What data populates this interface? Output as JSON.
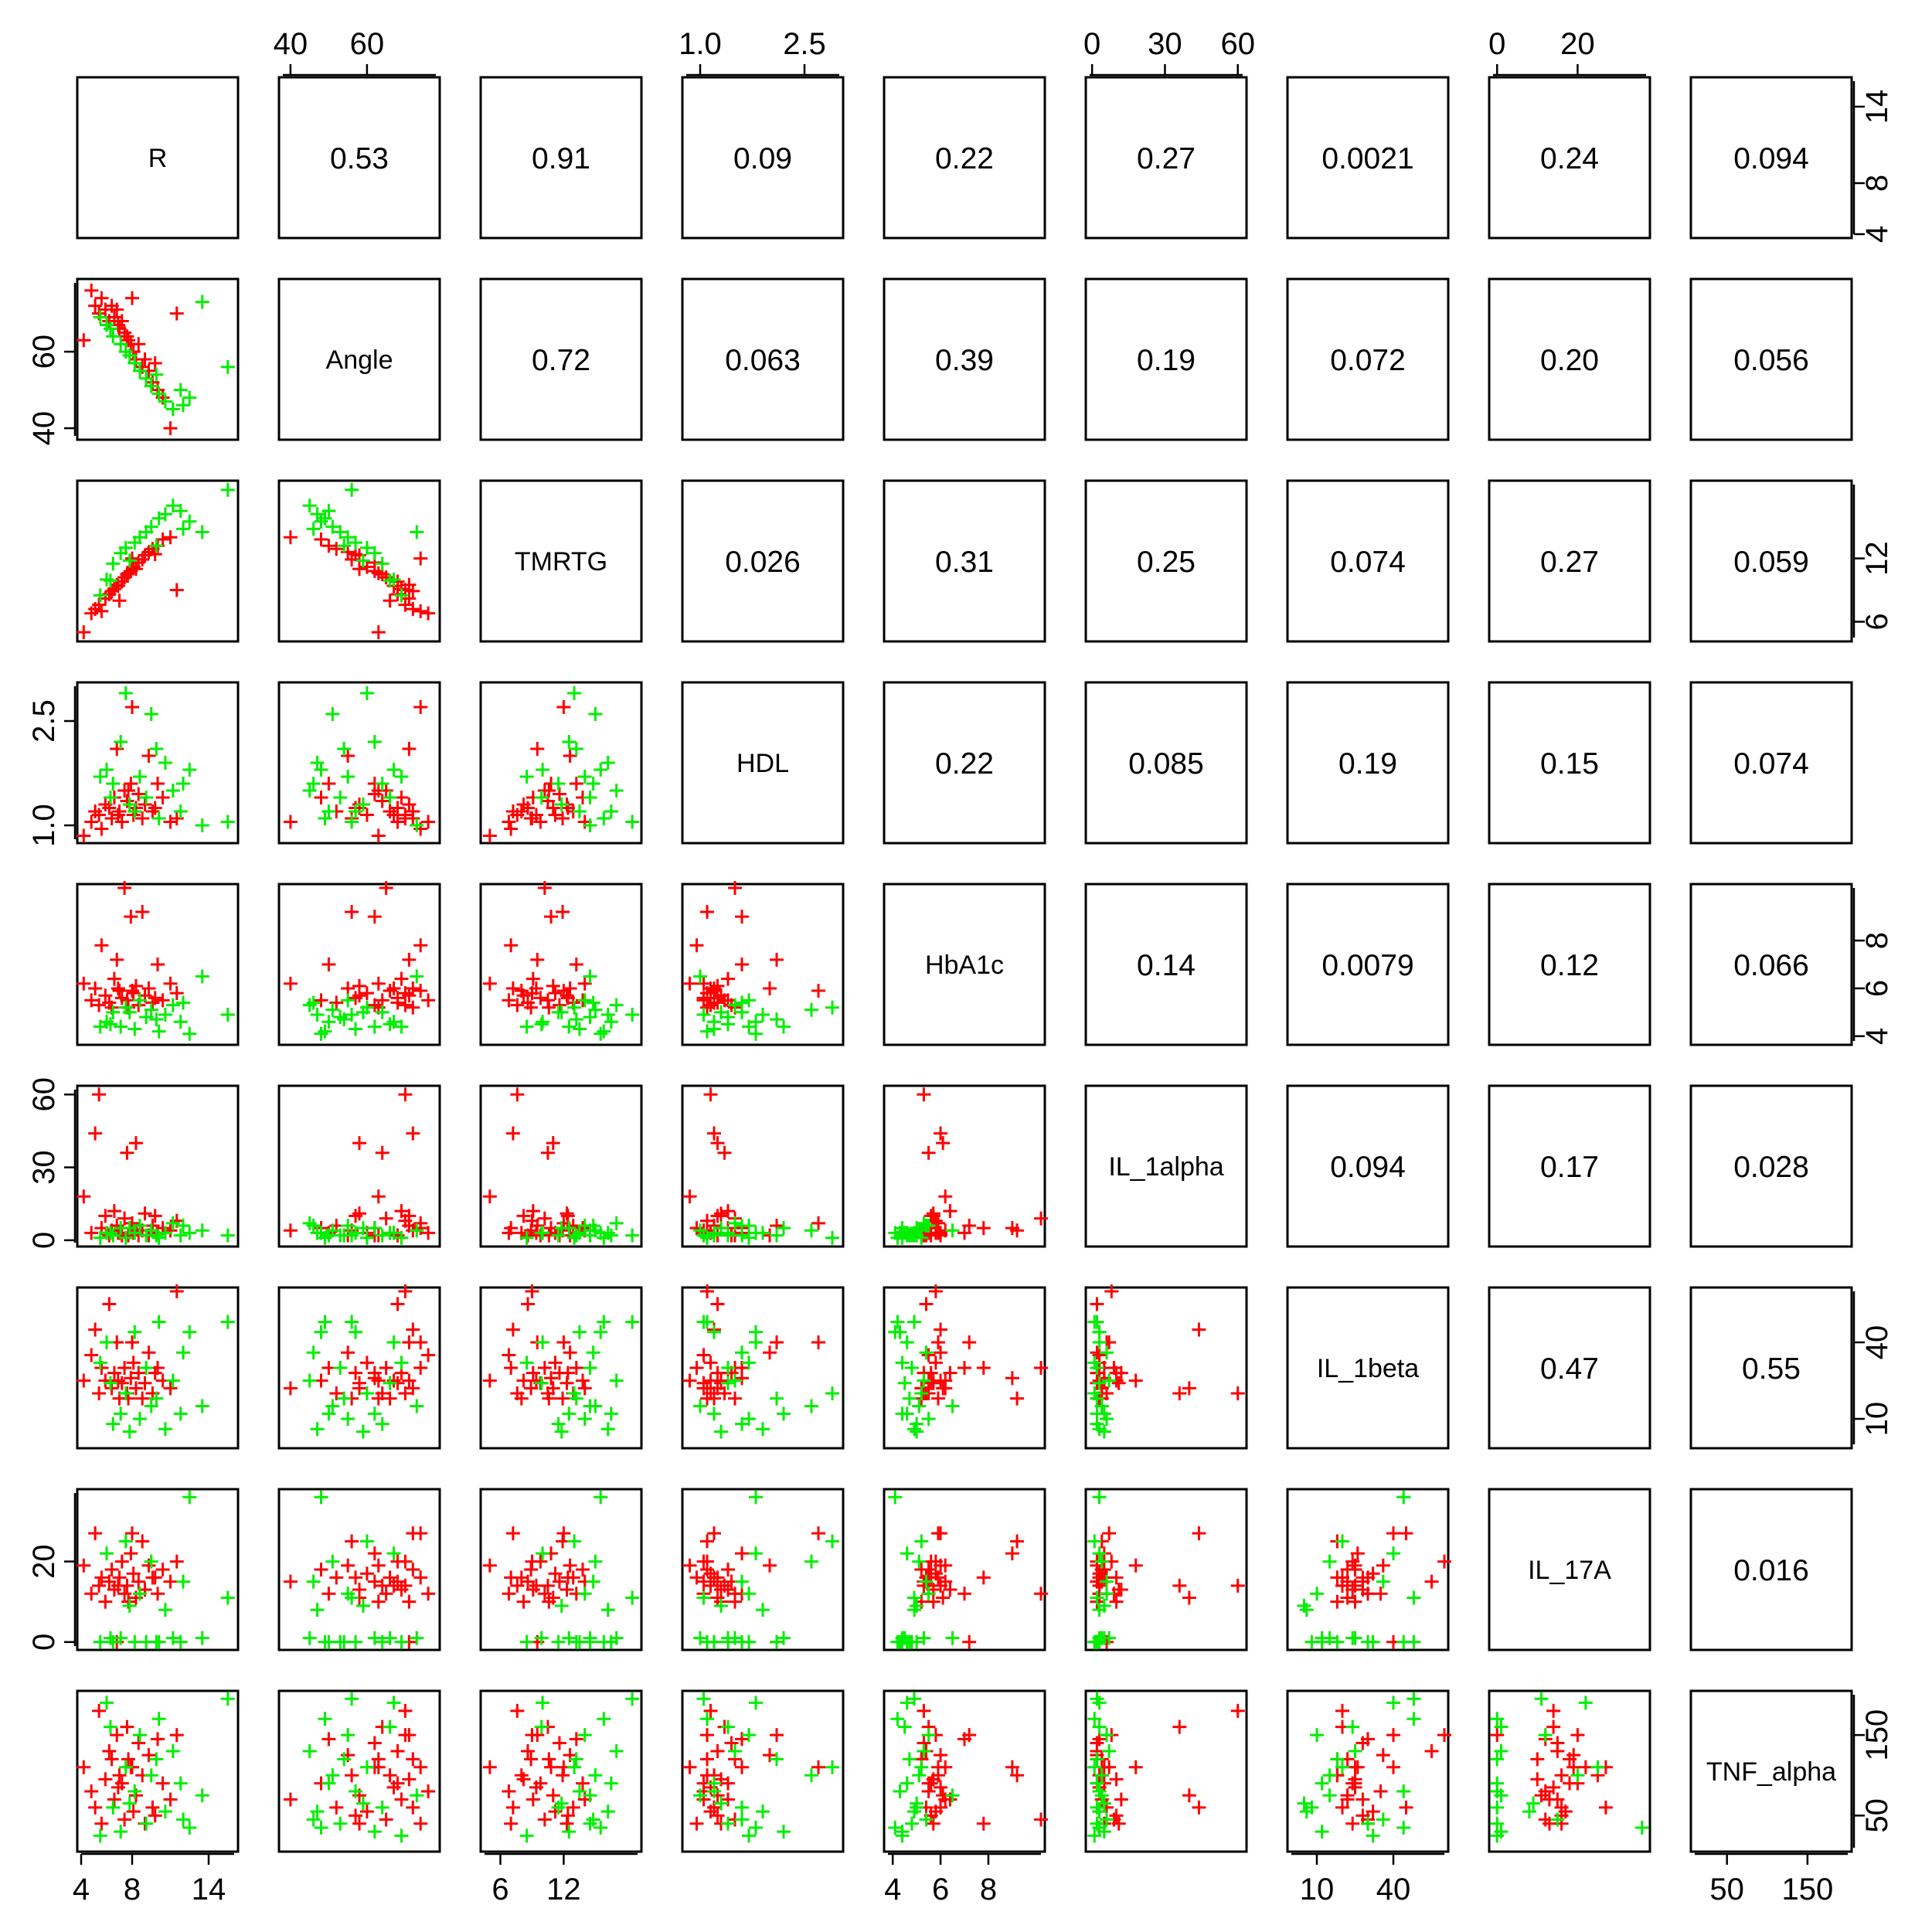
{
  "chart_data": {
    "type": "scatter",
    "title": "",
    "grid": false,
    "legend": "none",
    "marker": "plus",
    "groups": [
      {
        "color": "#FF0000"
      },
      {
        "color": "#00EE00"
      }
    ],
    "variables": [
      {
        "name": "R",
        "ticks": [
          4,
          8,
          14
        ],
        "range": [
          4,
          16
        ]
      },
      {
        "name": "Angle",
        "ticks": [
          40,
          60
        ],
        "range": [
          38,
          78
        ]
      },
      {
        "name": "TMRTG",
        "ticks": [
          6,
          12
        ],
        "range": [
          4.5,
          19
        ]
      },
      {
        "name": "HDL",
        "ticks": [
          1.0,
          2.5
        ],
        "range": [
          0.8,
          3.0
        ]
      },
      {
        "name": "HbA1c",
        "ticks": [
          4,
          6,
          8
        ],
        "range": [
          3.8,
          10.2
        ]
      },
      {
        "name": "IL_1alpha",
        "ticks": [
          0,
          30,
          60
        ],
        "range": [
          -1,
          62
        ]
      },
      {
        "name": "IL_1beta",
        "ticks": [
          10,
          40
        ],
        "range": [
          0,
          60
        ]
      },
      {
        "name": "IL_17A",
        "ticks": [
          0,
          20
        ],
        "range": [
          -1,
          37
        ]
      },
      {
        "name": "TNF_alpha",
        "ticks": [
          50,
          150
        ],
        "range": [
          10,
          200
        ]
      }
    ],
    "tick_labels": {
      "R": [
        "4",
        "8",
        "14"
      ],
      "Angle": [
        "40",
        "60"
      ],
      "TMRTG": [
        "6",
        "12"
      ],
      "HDL": [
        "1.0",
        "2.5"
      ],
      "HbA1c": [
        "4",
        "6",
        "8"
      ],
      "IL_1alpha": [
        "0",
        "30",
        "60"
      ],
      "IL_1beta": [
        "10",
        "40"
      ],
      "IL_17A": [
        "0",
        "20"
      ],
      "TNF_alpha": [
        "50",
        "150"
      ]
    },
    "correlations": [
      [
        "",
        "0.53",
        "0.91",
        "0.09",
        "0.22",
        "0.27",
        "0.0021",
        "0.24",
        "0.094"
      ],
      [
        "",
        "",
        "0.72",
        "0.063",
        "0.39",
        "0.19",
        "0.072",
        "0.20",
        "0.056"
      ],
      [
        "",
        "",
        "",
        "0.026",
        "0.31",
        "0.25",
        "0.074",
        "0.27",
        "0.059"
      ],
      [
        "",
        "",
        "",
        "",
        "0.22",
        "0.085",
        "0.19",
        "0.15",
        "0.074"
      ],
      [
        "",
        "",
        "",
        "",
        "",
        "0.14",
        "0.0079",
        "0.12",
        "0.066"
      ],
      [
        "",
        "",
        "",
        "",
        "",
        "",
        "0.094",
        "0.17",
        "0.028"
      ],
      [
        "",
        "",
        "",
        "",
        "",
        "",
        "",
        "0.47",
        "0.55"
      ],
      [
        "",
        "",
        "",
        "",
        "",
        "",
        "",
        "",
        "0.016"
      ],
      [
        "",
        "",
        "",
        "",
        "",
        "",
        "",
        "",
        ""
      ]
    ],
    "observations": {
      "columns": [
        "R",
        "Angle",
        "TMRTG",
        "HDL",
        "HbA1c",
        "IL_1alpha",
        "IL_1beta",
        "IL_17A",
        "TNF_alpha"
      ],
      "red": [
        [
          4.2,
          63,
          5.0,
          0.85,
          6.2,
          18,
          25,
          19,
          110
        ],
        [
          4.8,
          76,
          6.8,
          1.05,
          5.5,
          3,
          35,
          12,
          80
        ],
        [
          5.1,
          72,
          7.2,
          1.2,
          6.0,
          44,
          45,
          27,
          60
        ],
        [
          5.4,
          70,
          7.6,
          1.15,
          5.3,
          60,
          20,
          14,
          180
        ],
        [
          5.6,
          74,
          7.0,
          0.95,
          7.8,
          5,
          30,
          16,
          40
        ],
        [
          5.9,
          71,
          8.2,
          1.3,
          5.7,
          10,
          25,
          10,
          95
        ],
        [
          6.2,
          68,
          8.6,
          1.25,
          5.4,
          2,
          55,
          15,
          130
        ],
        [
          6.4,
          72,
          8.9,
          1.1,
          5.2,
          4,
          22,
          18,
          120
        ],
        [
          6.6,
          69,
          9.1,
          1.4,
          6.4,
          12,
          28,
          13,
          70
        ],
        [
          6.8,
          71,
          9.5,
          2.1,
          7.2,
          6,
          40,
          0,
          150
        ],
        [
          7.0,
          66,
          8.0,
          1.2,
          5.9,
          3,
          18,
          16,
          100
        ],
        [
          7.2,
          68,
          9.8,
          1.05,
          5.6,
          2,
          24,
          20,
          90
        ],
        [
          7.4,
          65,
          10.2,
          1.5,
          10.2,
          9,
          30,
          12,
          45
        ],
        [
          7.6,
          64,
          10.5,
          1.35,
          5.5,
          36,
          20,
          14,
          160
        ],
        [
          7.9,
          62,
          10.8,
          1.6,
          9.0,
          5,
          26,
          22,
          110
        ],
        [
          8.1,
          60,
          11.2,
          1.15,
          5.8,
          3,
          32,
          17,
          55
        ],
        [
          8.3,
          58,
          11.0,
          1.25,
          6.1,
          40,
          22,
          11,
          75
        ],
        [
          8.5,
          62,
          11.6,
          1.45,
          5.3,
          2,
          28,
          15,
          140
        ],
        [
          8.8,
          56,
          11.9,
          1.1,
          9.2,
          4,
          18,
          25,
          100
        ],
        [
          9.0,
          58,
          12.3,
          1.3,
          5.7,
          11,
          24,
          13,
          40
        ],
        [
          9.3,
          55,
          12.6,
          2.0,
          6.0,
          2,
          36,
          19,
          125
        ],
        [
          9.6,
          52,
          12.9,
          1.2,
          5.4,
          6,
          20,
          16,
          60
        ],
        [
          10.0,
          50,
          13.2,
          1.6,
          7.0,
          3,
          30,
          12,
          145
        ],
        [
          10.4,
          48,
          13.8,
          1.4,
          5.5,
          5,
          25,
          18,
          90
        ],
        [
          11.0,
          40,
          14.0,
          1.05,
          6.2,
          4,
          22,
          15,
          70
        ],
        [
          11.5,
          70,
          9.0,
          1.1,
          5.8,
          8,
          60,
          20,
          150
        ],
        [
          8.0,
          74,
          12.0,
          2.7,
          5.9,
          7,
          40,
          27,
          110
        ],
        [
          6.9,
          67,
          9.4,
          1.15,
          6.0,
          3,
          25,
          14,
          85
        ],
        [
          7.7,
          63,
          10.6,
          1.5,
          5.2,
          2,
          18,
          10,
          120
        ],
        [
          9.8,
          57,
          12.4,
          1.25,
          5.6,
          10,
          28,
          16,
          50
        ]
      ],
      "green": [
        [
          6.0,
          67,
          10.0,
          1.8,
          4.6,
          3,
          40,
          22,
          190
        ],
        [
          6.5,
          64,
          11.5,
          1.6,
          5.0,
          2,
          8,
          0,
          60
        ],
        [
          7.1,
          62,
          12.5,
          2.2,
          4.4,
          5,
          12,
          1,
          30
        ],
        [
          7.5,
          60,
          13.0,
          2.9,
          5.2,
          1,
          20,
          25,
          110
        ],
        [
          8.2,
          57,
          13.5,
          1.2,
          4.3,
          3,
          44,
          0,
          80
        ],
        [
          8.6,
          55,
          14.0,
          1.7,
          5.5,
          6,
          10,
          12,
          150
        ],
        [
          9.1,
          53,
          14.5,
          1.4,
          4.8,
          2,
          30,
          0,
          40
        ],
        [
          9.5,
          51,
          15.0,
          2.6,
          5.1,
          4,
          15,
          20,
          100
        ],
        [
          10.1,
          49,
          15.8,
          1.1,
          4.2,
          1,
          48,
          0,
          170
        ],
        [
          10.6,
          47,
          16.2,
          1.9,
          4.9,
          3,
          6,
          8,
          55
        ],
        [
          11.2,
          45,
          17.0,
          1.5,
          5.3,
          7,
          25,
          1,
          130
        ],
        [
          11.8,
          50,
          16.5,
          1.2,
          4.6,
          2,
          12,
          0,
          90
        ],
        [
          12.5,
          48,
          15.5,
          1.8,
          4.1,
          3,
          44,
          36,
          35
        ],
        [
          13.5,
          73,
          14.5,
          1.0,
          6.5,
          4,
          15,
          1,
          75
        ],
        [
          15.5,
          56,
          18.5,
          1.05,
          4.9,
          2,
          48,
          11,
          195
        ],
        [
          5.5,
          69,
          8.5,
          1.7,
          4.4,
          1,
          32,
          0,
          25
        ],
        [
          7.8,
          59,
          11.8,
          1.3,
          5.0,
          5,
          5,
          9,
          65
        ],
        [
          9.9,
          54,
          13.2,
          2.1,
          4.7,
          2,
          18,
          0,
          120
        ],
        [
          12.0,
          46,
          14.8,
          1.6,
          5.4,
          6,
          36,
          15,
          45
        ],
        [
          6.3,
          66,
          9.9,
          1.4,
          4.5,
          3,
          24,
          1,
          160
        ]
      ]
    }
  }
}
